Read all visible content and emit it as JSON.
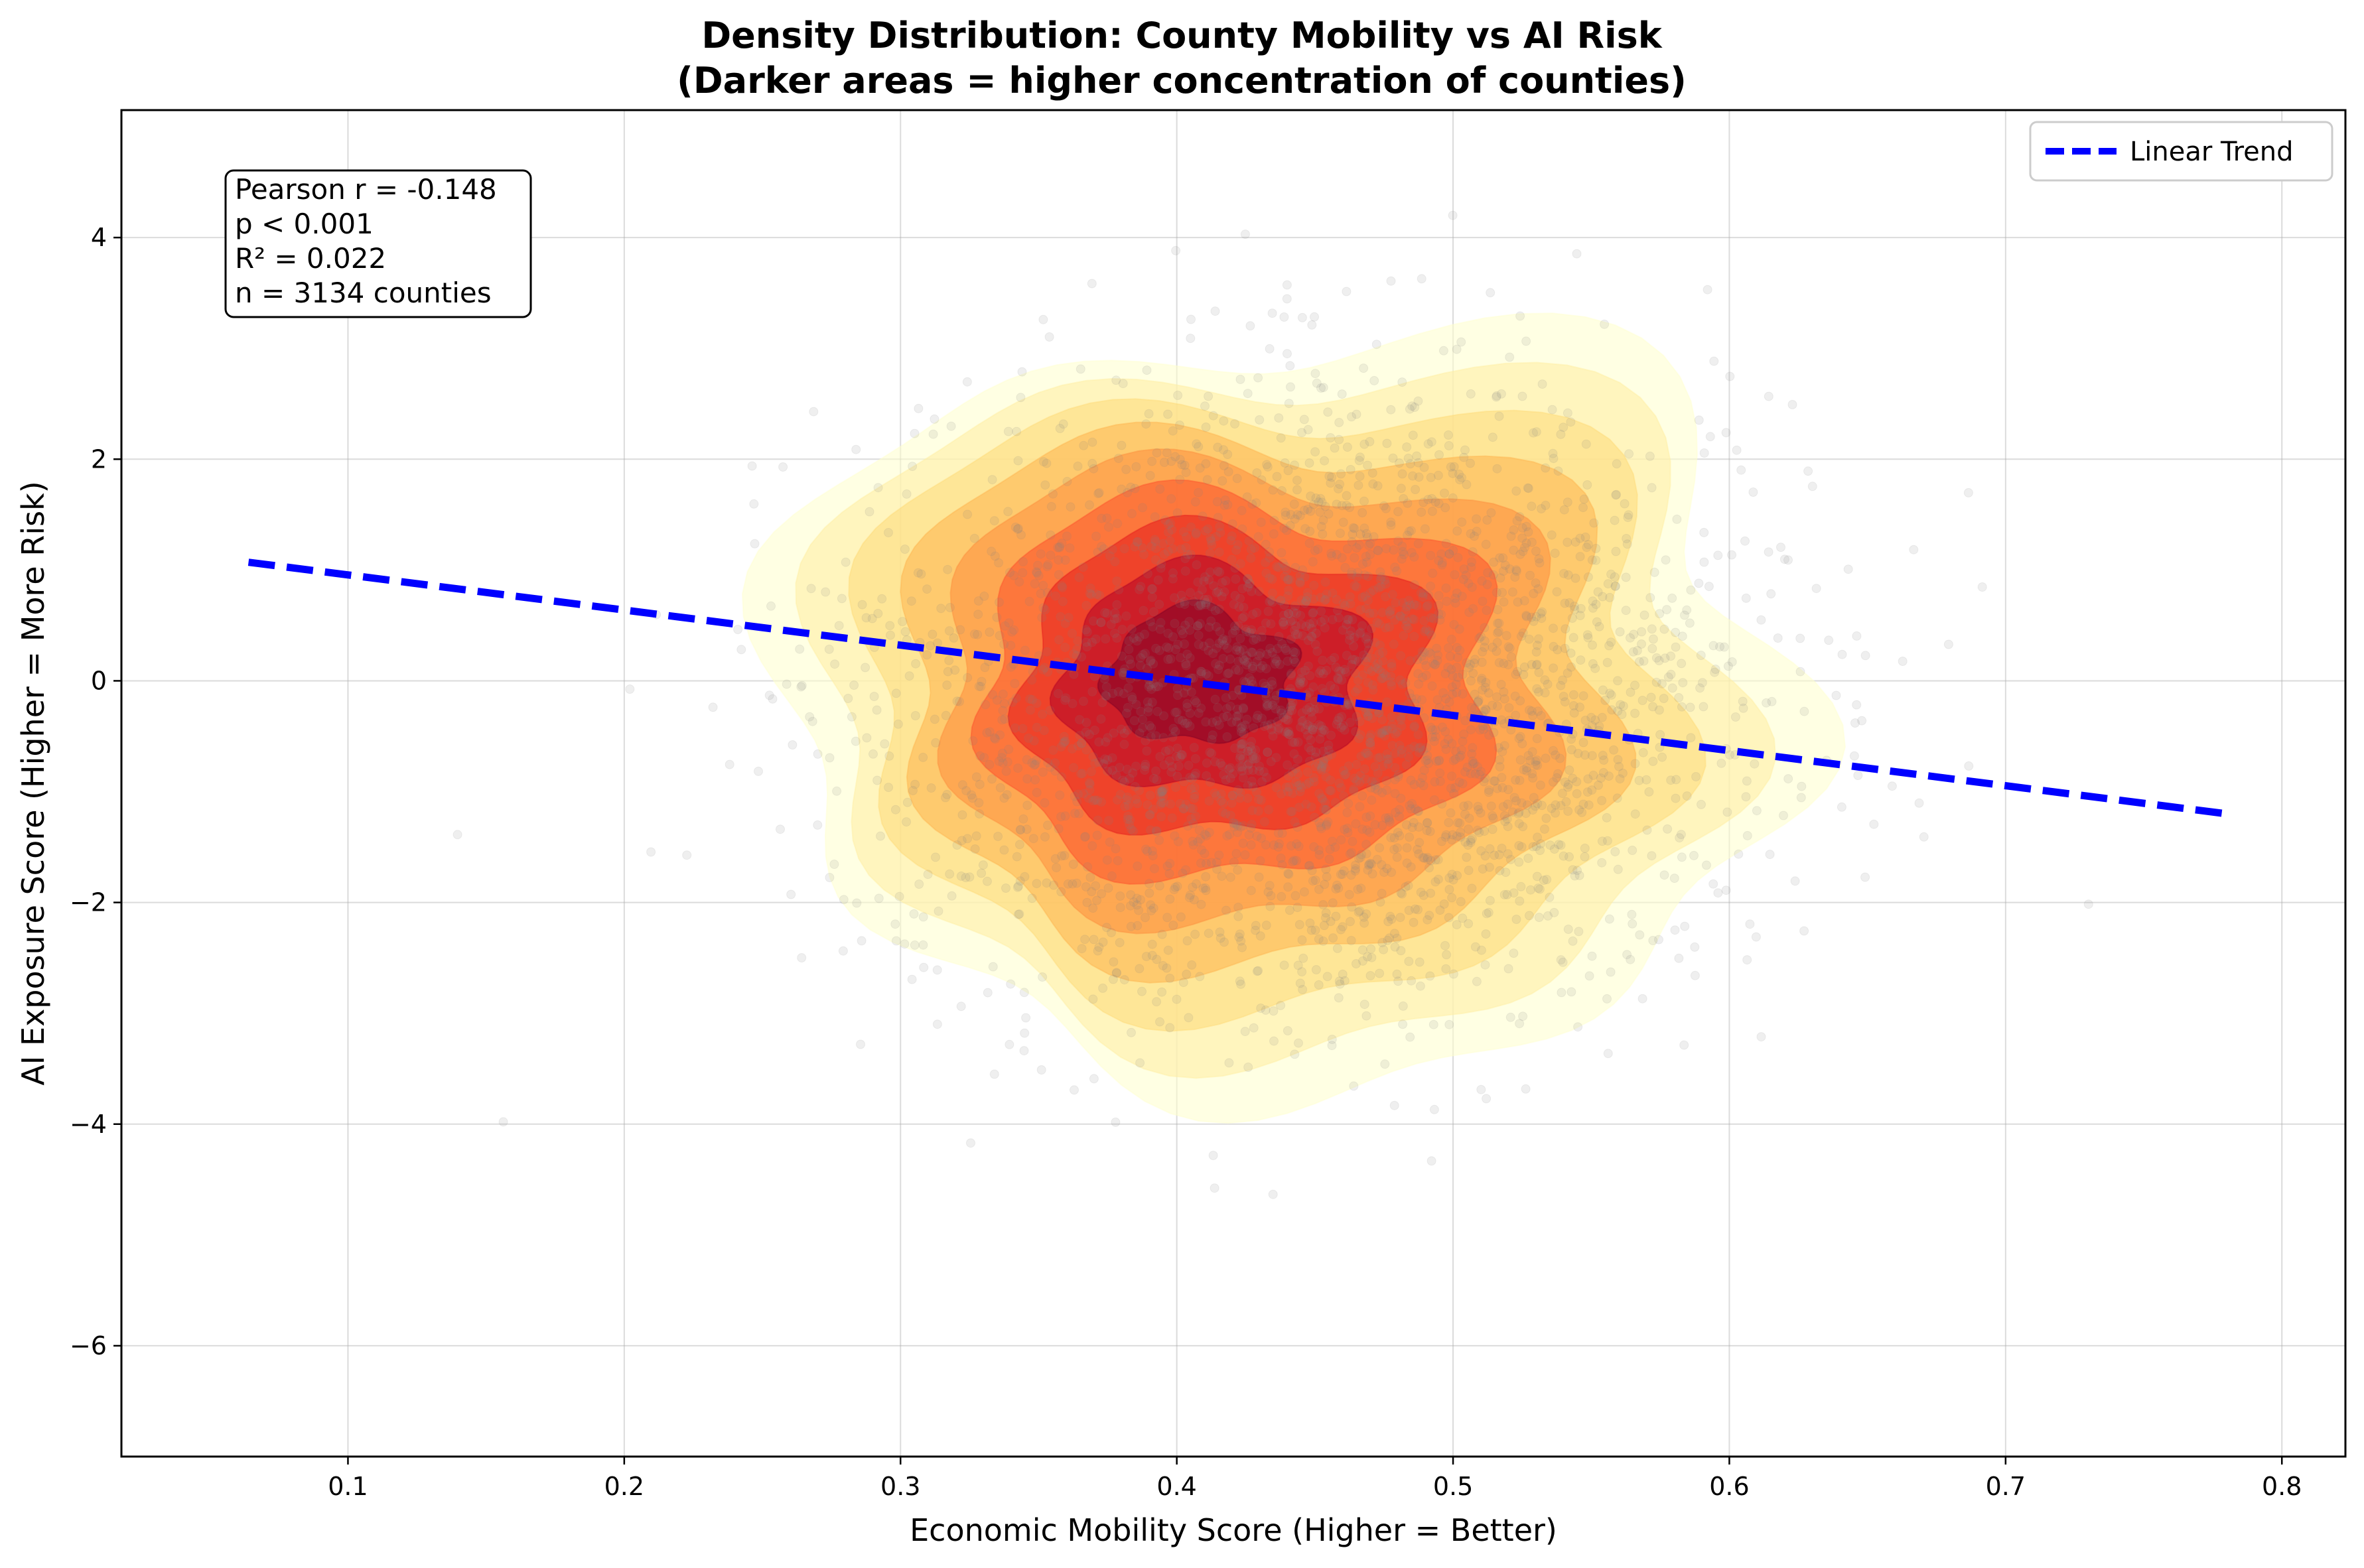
{
  "chart_data": {
    "type": "scatter",
    "title_lines": [
      "Density Distribution: County Mobility vs AI Risk",
      "(Darker areas = higher concentration of counties)"
    ],
    "xlabel": "Economic Mobility Score (Higher = Better)",
    "ylabel": "AI Exposure Score (Higher = More Risk)",
    "xlim": [
      0.018,
      0.823
    ],
    "ylim": [
      -7.0,
      5.15
    ],
    "xticks": [
      0.1,
      0.2,
      0.3,
      0.4,
      0.5,
      0.6,
      0.7,
      0.8
    ],
    "xtick_labels": [
      "0.1",
      "0.2",
      "0.3",
      "0.4",
      "0.5",
      "0.6",
      "0.7",
      "0.8"
    ],
    "yticks": [
      -6,
      -4,
      -2,
      0,
      2,
      4
    ],
    "ytick_labels": [
      "−6",
      "−4",
      "−2",
      "0",
      "2",
      "4"
    ],
    "grid": true,
    "legend": {
      "position": "top-right",
      "entries": [
        {
          "label": "Linear Trend",
          "color": "#0000ff",
          "style": "dashed"
        }
      ]
    },
    "trend_line": {
      "name": "Linear Trend",
      "x": [
        0.064,
        0.78
      ],
      "y": [
        1.07,
        -1.2
      ],
      "color": "#0000ff"
    },
    "stats_box": {
      "position": "top-left",
      "lines": [
        "Pearson r = -0.148",
        "p < 0.001",
        "R² = 0.022",
        "n = 3134 counties"
      ]
    },
    "density": {
      "center": {
        "x": 0.44,
        "y": -0.2
      },
      "colormap": [
        "#ffffcc",
        "#ffeda0",
        "#fed976",
        "#feb24c",
        "#fd8d3c",
        "#fc4e2a",
        "#e31a1c",
        "#b10026",
        "#800026"
      ],
      "levels": 9
    },
    "scatter": {
      "n": 3134,
      "x_mean": 0.45,
      "x_sd": 0.075,
      "y_mean": -0.2,
      "y_sd": 1.35,
      "color": "#808080"
    }
  }
}
